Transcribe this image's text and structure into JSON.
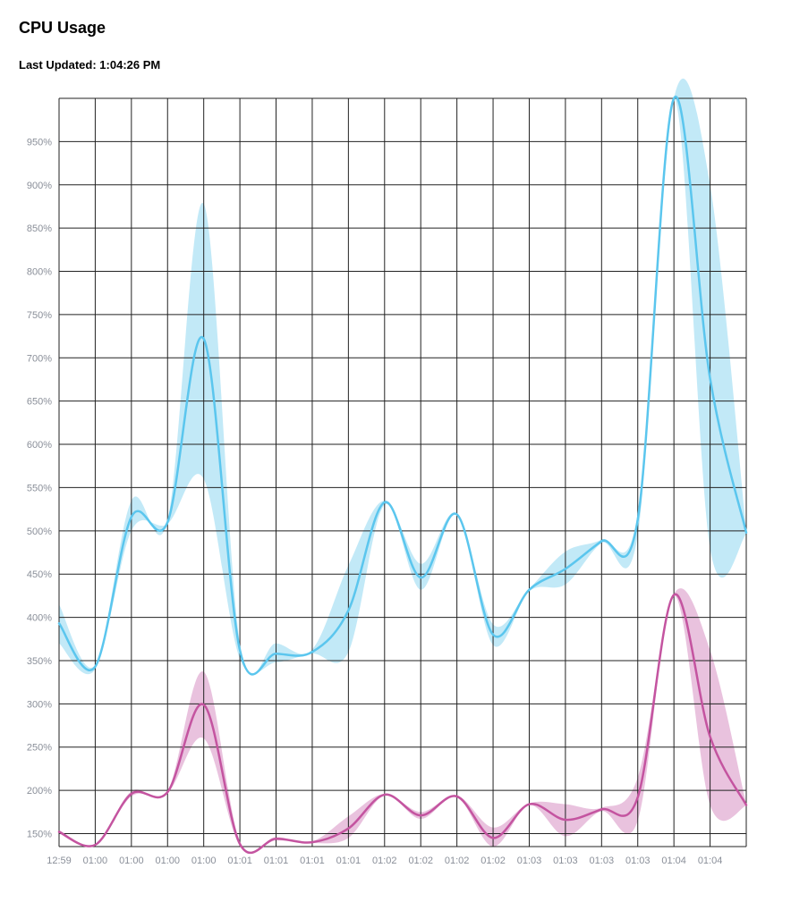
{
  "page": {
    "title": "CPU Usage",
    "last_updated_label": "Last Updated:",
    "last_updated_time": "1:04:26 PM"
  },
  "colors": {
    "series_blue": "#5bc6ee",
    "series_blue_band": "#bfe8f7",
    "series_magenta": "#c454a0",
    "series_magenta_band": "#e8bfdc",
    "grid": "#222222",
    "tick_text": "#8a8f99"
  },
  "chart_data": {
    "type": "line",
    "grid": true,
    "ylim": [
      135,
      1000
    ],
    "y_ticks": [
      150,
      200,
      250,
      300,
      350,
      400,
      450,
      500,
      550,
      600,
      650,
      700,
      750,
      800,
      850,
      900,
      950
    ],
    "y_tick_labels": [
      "150%",
      "200%",
      "250%",
      "300%",
      "350%",
      "400%",
      "450%",
      "500%",
      "550%",
      "600%",
      "650%",
      "700%",
      "750%",
      "800%",
      "850%",
      "900%",
      "950%"
    ],
    "x_tick_labels": [
      "12:59",
      "01:00",
      "01:00",
      "01:00",
      "01:00",
      "01:01",
      "01:01",
      "01:01",
      "01:01",
      "01:02",
      "01:02",
      "01:02",
      "01:02",
      "01:03",
      "01:03",
      "01:03",
      "01:03",
      "01:04",
      "01:04"
    ],
    "series": [
      {
        "color": "#5bc6ee",
        "band_color": "#bfe8f7",
        "values": [
          393,
          343,
          516,
          510,
          722,
          362,
          358,
          360,
          408,
          533,
          446,
          519,
          380,
          432,
          456,
          488,
          513,
          1000,
          676,
          498
        ],
        "upper": [
          415,
          345,
          535,
          512,
          878,
          370,
          370,
          363,
          460,
          535,
          462,
          520,
          392,
          433,
          476,
          490,
          520,
          1000,
          900,
          500
        ],
        "lower": [
          370,
          340,
          500,
          508,
          560,
          352,
          348,
          358,
          360,
          530,
          432,
          518,
          368,
          430,
          438,
          486,
          495,
          1000,
          480,
          496
        ]
      },
      {
        "color": "#c454a0",
        "band_color": "#e8bfdc",
        "values": [
          152,
          137,
          196,
          198,
          299,
          138,
          144,
          140,
          156,
          195,
          171,
          193,
          145,
          184,
          166,
          178,
          192,
          426,
          262,
          183
        ],
        "upper": [
          154,
          138,
          199,
          199,
          337,
          141,
          146,
          141,
          170,
          196,
          175,
          194,
          157,
          185,
          184,
          180,
          215,
          427,
          362,
          184
        ],
        "lower": [
          150,
          136,
          193,
          197,
          260,
          136,
          142,
          139,
          145,
          194,
          167,
          192,
          135,
          183,
          147,
          176,
          165,
          425,
          183,
          182
        ]
      }
    ]
  }
}
